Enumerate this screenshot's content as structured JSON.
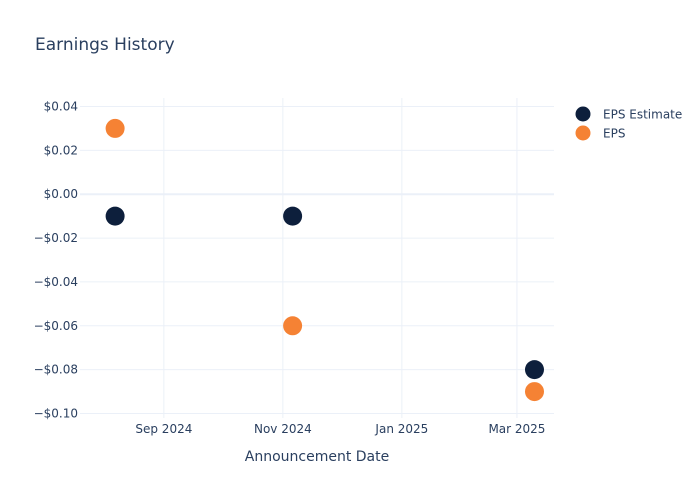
{
  "chart_data": {
    "type": "scatter",
    "title": "Earnings History",
    "xlabel": "Announcement Date",
    "ylabel": "",
    "x_ticks": [
      {
        "date": "2024-09-01",
        "label": "Sep 2024"
      },
      {
        "date": "2024-11-01",
        "label": "Nov 2024"
      },
      {
        "date": "2025-01-01",
        "label": "Jan 2025"
      },
      {
        "date": "2025-03-01",
        "label": "Mar 2025"
      }
    ],
    "xlim": [
      "2024-07-20",
      "2025-03-20"
    ],
    "ylim": [
      -0.1,
      0.04
    ],
    "y_ticks": [
      {
        "value": 0.04,
        "label": "$0.04"
      },
      {
        "value": 0.02,
        "label": "$0.02"
      },
      {
        "value": 0.0,
        "label": "$0.00"
      },
      {
        "value": -0.02,
        "label": "−$0.02"
      },
      {
        "value": -0.04,
        "label": "−$0.04"
      },
      {
        "value": -0.06,
        "label": "−$0.06"
      },
      {
        "value": -0.08,
        "label": "−$0.08"
      },
      {
        "value": -0.1,
        "label": "−$0.10"
      }
    ],
    "grid": true,
    "legend_position": "top-right",
    "series": [
      {
        "name": "EPS Estimate",
        "color": "#0d1f3c",
        "points": [
          {
            "x": "2024-08-07",
            "y": -0.01
          },
          {
            "x": "2024-11-06",
            "y": -0.01
          },
          {
            "x": "2025-03-10",
            "y": -0.08
          }
        ]
      },
      {
        "name": "EPS",
        "color": "#f58234",
        "points": [
          {
            "x": "2024-08-07",
            "y": 0.03
          },
          {
            "x": "2024-11-06",
            "y": -0.06
          },
          {
            "x": "2025-03-10",
            "y": -0.09
          }
        ]
      }
    ]
  }
}
